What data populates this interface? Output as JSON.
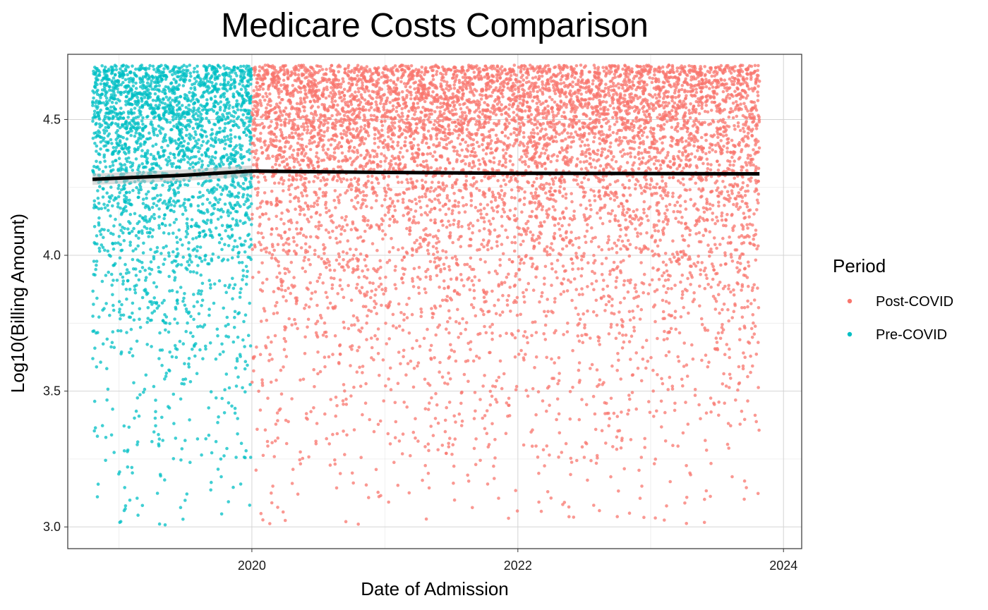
{
  "chart_data": {
    "type": "scatter",
    "title": "Medicare Costs Comparison",
    "xlabel": "Date of Admission",
    "ylabel": "Log10(Billing Amount)",
    "xlim": [
      "2018-08-13",
      "2024-02-20"
    ],
    "ylim": [
      2.92,
      4.74
    ],
    "x_ticks": [
      {
        "date": "2020-01-01",
        "label": "2020"
      },
      {
        "date": "2022-01-01",
        "label": "2022"
      },
      {
        "date": "2024-01-01",
        "label": "2024"
      }
    ],
    "x_minor_ticks": [
      "2019-01-01",
      "2021-01-01",
      "2023-01-01"
    ],
    "y_ticks": [
      {
        "value": 3.0,
        "label": "3.0"
      },
      {
        "value": 3.5,
        "label": "3.5"
      },
      {
        "value": 4.0,
        "label": "4.0"
      },
      {
        "value": 4.5,
        "label": "4.5"
      }
    ],
    "y_minor_ticks": [
      3.25,
      3.75,
      4.25
    ],
    "grid": true,
    "legend": {
      "title": "Period",
      "position": "right",
      "entries": [
        {
          "label": "Post-COVID",
          "color": "#F8766D"
        },
        {
          "label": "Pre-COVID",
          "color": "#00BFC4"
        }
      ]
    },
    "series": [
      {
        "name": "Pre-COVID",
        "color": "#00BFC4",
        "x_range": [
          "2018-10-20",
          "2019-12-31"
        ],
        "y_range": [
          3.0,
          4.7
        ],
        "approx_points": 2600
      },
      {
        "name": "Post-COVID",
        "color": "#F8766D",
        "x_range": [
          "2020-01-01",
          "2023-10-27"
        ],
        "y_range": [
          3.0,
          4.7
        ],
        "approx_points": 7400
      }
    ],
    "trend_line": {
      "color": "#000000",
      "points": [
        {
          "x": "2018-10-20",
          "y": 4.28
        },
        {
          "x": "2019-07-01",
          "y": 4.295
        },
        {
          "x": "2020-01-01",
          "y": 4.31
        },
        {
          "x": "2021-01-01",
          "y": 4.305
        },
        {
          "x": "2022-01-01",
          "y": 4.302
        },
        {
          "x": "2023-01-01",
          "y": 4.301
        },
        {
          "x": "2023-10-27",
          "y": 4.3
        }
      ]
    }
  }
}
